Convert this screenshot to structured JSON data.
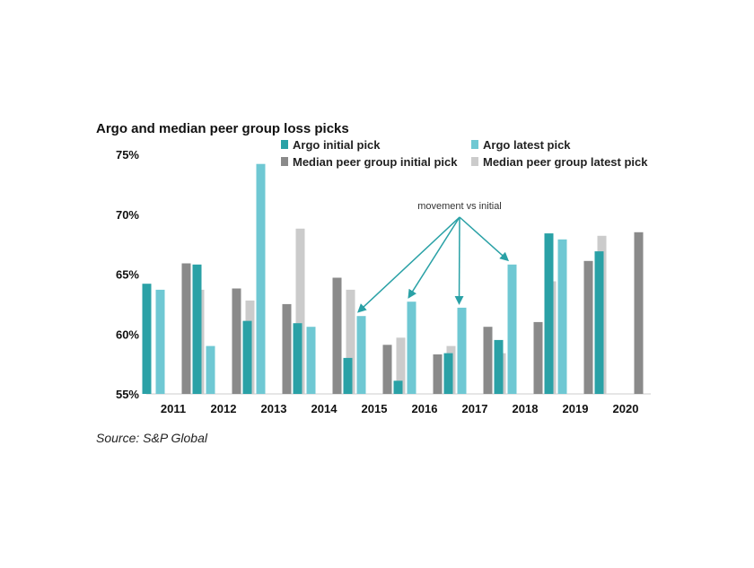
{
  "chart_data": {
    "type": "bar",
    "title": "Argo and median peer group loss picks",
    "xlabel": "",
    "ylabel": "",
    "categories": [
      "2011",
      "2012",
      "2013",
      "2014",
      "2015",
      "2016",
      "2017",
      "2018",
      "2019",
      "2020"
    ],
    "ylim": [
      55,
      75
    ],
    "yticks": [
      "55%",
      "60%",
      "65%",
      "70%",
      "75%"
    ],
    "ytick_values": [
      55,
      60,
      65,
      70,
      75
    ],
    "grid": false,
    "legend_position": "top",
    "series": [
      {
        "name": "Argo initial pick",
        "color": "#2aa1a6",
        "values": [
          64.2,
          65.8,
          61.1,
          60.9,
          58.0,
          56.1,
          58.4,
          59.5,
          68.4,
          66.9
        ]
      },
      {
        "name": "Argo latest pick",
        "color": "#6fc8d3",
        "values": [
          63.7,
          59.0,
          74.2,
          60.6,
          61.5,
          62.7,
          62.2,
          65.8,
          67.9,
          null
        ]
      },
      {
        "name": "Median peer group initial pick",
        "color": "#8a8a8a",
        "values": [
          65.9,
          63.8,
          62.5,
          64.7,
          59.1,
          58.3,
          60.6,
          61.0,
          66.1,
          68.5
        ]
      },
      {
        "name": "Median peer group latest pick",
        "color": "#cbcbcb",
        "values": [
          63.7,
          62.8,
          68.8,
          63.7,
          59.7,
          59.0,
          58.4,
          64.4,
          68.2,
          null
        ]
      }
    ],
    "annotation": {
      "text": "movement vs initial",
      "targets": [
        "2015",
        "2016",
        "2017",
        "2018"
      ],
      "target_series": "Argo latest pick",
      "color": "#2aa1a6"
    },
    "source": "Source: S&P Global"
  }
}
